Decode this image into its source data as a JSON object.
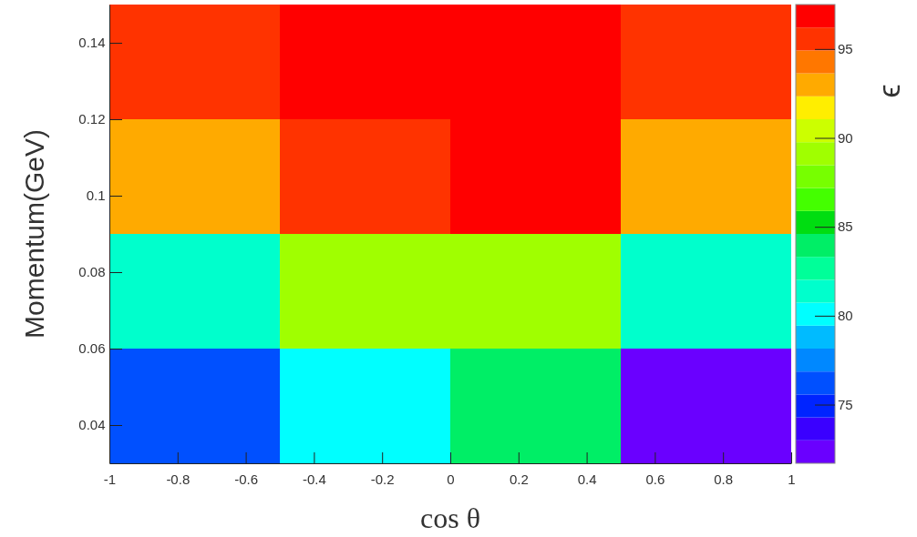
{
  "chart_data": {
    "type": "heatmap",
    "xlabel": "cos θ",
    "ylabel": "Momentum(GeV)",
    "clabel": "ϵ",
    "x": [
      -0.75,
      -0.25,
      0.25,
      0.75
    ],
    "y": [
      0.135,
      0.105,
      0.075,
      0.045
    ],
    "cells": [
      [
        95.5,
        96.8,
        96.8,
        95.5
      ],
      [
        92.9,
        95.5,
        96.8,
        92.9
      ],
      [
        81.4,
        89.1,
        89.1,
        81.4
      ],
      [
        76.2,
        80.0,
        84.0,
        72.3
      ]
    ],
    "xlim": [
      -1,
      1
    ],
    "xticks": [
      -1,
      -0.8,
      -0.6,
      -0.4,
      -0.2,
      0,
      0.2,
      0.4,
      0.6,
      0.8,
      1
    ],
    "ylim": [
      0.03,
      0.15
    ],
    "yticks": [
      0.04,
      0.06,
      0.08,
      0.1,
      0.12,
      0.14
    ],
    "clim": [
      71.7,
      97.5
    ],
    "cticks": [
      75,
      80,
      85,
      90,
      95
    ]
  }
}
